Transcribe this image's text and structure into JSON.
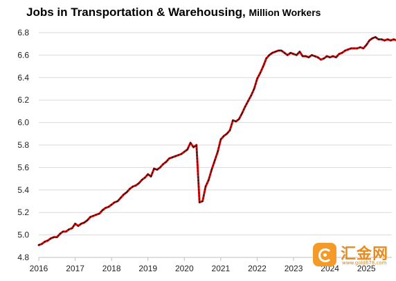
{
  "chart_data": {
    "type": "line",
    "title": "Jobs in Transportation & Warehousing,",
    "subtitle": "Million Workers",
    "ylim": [
      4.8,
      6.8
    ],
    "yticks": [
      "4.8",
      "5.0",
      "5.2",
      "5.4",
      "5.6",
      "5.8",
      "6.0",
      "6.2",
      "6.4",
      "6.6",
      "6.8"
    ],
    "xlim": [
      2016,
      2025.7
    ],
    "xticks": [
      "2016",
      "2017",
      "2018",
      "2019",
      "2020",
      "2021",
      "2022",
      "2023",
      "2024",
      "2025"
    ],
    "grid": "horizontal",
    "line_color": "#ff0000",
    "marker_color": "#1a1a1a",
    "series": [
      {
        "values": [
          [
            2016.0,
            4.91
          ],
          [
            2016.083,
            4.92
          ],
          [
            2016.167,
            4.94
          ],
          [
            2016.25,
            4.95
          ],
          [
            2016.333,
            4.97
          ],
          [
            2016.417,
            4.98
          ],
          [
            2016.5,
            4.98
          ],
          [
            2016.583,
            5.01
          ],
          [
            2016.667,
            5.03
          ],
          [
            2016.75,
            5.03
          ],
          [
            2016.833,
            5.05
          ],
          [
            2016.917,
            5.06
          ],
          [
            2017.0,
            5.1
          ],
          [
            2017.083,
            5.08
          ],
          [
            2017.167,
            5.1
          ],
          [
            2017.25,
            5.11
          ],
          [
            2017.333,
            5.13
          ],
          [
            2017.417,
            5.16
          ],
          [
            2017.5,
            5.17
          ],
          [
            2017.583,
            5.18
          ],
          [
            2017.667,
            5.19
          ],
          [
            2017.75,
            5.22
          ],
          [
            2017.833,
            5.24
          ],
          [
            2017.917,
            5.25
          ],
          [
            2018.0,
            5.27
          ],
          [
            2018.083,
            5.29
          ],
          [
            2018.167,
            5.3
          ],
          [
            2018.25,
            5.33
          ],
          [
            2018.333,
            5.36
          ],
          [
            2018.417,
            5.38
          ],
          [
            2018.5,
            5.41
          ],
          [
            2018.583,
            5.43
          ],
          [
            2018.667,
            5.44
          ],
          [
            2018.75,
            5.46
          ],
          [
            2018.833,
            5.49
          ],
          [
            2018.917,
            5.51
          ],
          [
            2019.0,
            5.54
          ],
          [
            2019.083,
            5.52
          ],
          [
            2019.167,
            5.59
          ],
          [
            2019.25,
            5.58
          ],
          [
            2019.333,
            5.6
          ],
          [
            2019.417,
            5.63
          ],
          [
            2019.5,
            5.65
          ],
          [
            2019.583,
            5.68
          ],
          [
            2019.667,
            5.69
          ],
          [
            2019.75,
            5.7
          ],
          [
            2019.833,
            5.71
          ],
          [
            2019.917,
            5.72
          ],
          [
            2020.0,
            5.74
          ],
          [
            2020.083,
            5.76
          ],
          [
            2020.167,
            5.82
          ],
          [
            2020.25,
            5.78
          ],
          [
            2020.333,
            5.8
          ],
          [
            2020.417,
            5.29
          ],
          [
            2020.5,
            5.3
          ],
          [
            2020.583,
            5.43
          ],
          [
            2020.667,
            5.49
          ],
          [
            2020.75,
            5.58
          ],
          [
            2020.833,
            5.66
          ],
          [
            2020.917,
            5.74
          ],
          [
            2021.0,
            5.85
          ],
          [
            2021.083,
            5.88
          ],
          [
            2021.167,
            5.9
          ],
          [
            2021.25,
            5.93
          ],
          [
            2021.333,
            6.02
          ],
          [
            2021.417,
            6.01
          ],
          [
            2021.5,
            6.03
          ],
          [
            2021.583,
            6.08
          ],
          [
            2021.667,
            6.14
          ],
          [
            2021.75,
            6.19
          ],
          [
            2021.833,
            6.24
          ],
          [
            2021.917,
            6.3
          ],
          [
            2022.0,
            6.39
          ],
          [
            2022.083,
            6.44
          ],
          [
            2022.167,
            6.5
          ],
          [
            2022.25,
            6.57
          ],
          [
            2022.333,
            6.6
          ],
          [
            2022.417,
            6.62
          ],
          [
            2022.5,
            6.63
          ],
          [
            2022.583,
            6.64
          ],
          [
            2022.667,
            6.64
          ],
          [
            2022.75,
            6.62
          ],
          [
            2022.833,
            6.6
          ],
          [
            2022.917,
            6.62
          ],
          [
            2023.0,
            6.61
          ],
          [
            2023.083,
            6.6
          ],
          [
            2023.167,
            6.63
          ],
          [
            2023.25,
            6.59
          ],
          [
            2023.333,
            6.59
          ],
          [
            2023.417,
            6.58
          ],
          [
            2023.5,
            6.6
          ],
          [
            2023.583,
            6.59
          ],
          [
            2023.667,
            6.58
          ],
          [
            2023.75,
            6.56
          ],
          [
            2023.833,
            6.57
          ],
          [
            2023.917,
            6.59
          ],
          [
            2024.0,
            6.58
          ],
          [
            2024.083,
            6.59
          ],
          [
            2024.167,
            6.58
          ],
          [
            2024.25,
            6.61
          ],
          [
            2024.333,
            6.62
          ],
          [
            2024.417,
            6.64
          ],
          [
            2024.5,
            6.65
          ],
          [
            2024.583,
            6.66
          ],
          [
            2024.667,
            6.66
          ],
          [
            2024.75,
            6.66
          ],
          [
            2024.833,
            6.67
          ],
          [
            2024.917,
            6.66
          ],
          [
            2025.0,
            6.69
          ],
          [
            2025.083,
            6.73
          ],
          [
            2025.167,
            6.75
          ],
          [
            2025.25,
            6.76
          ],
          [
            2025.333,
            6.74
          ],
          [
            2025.417,
            6.74
          ],
          [
            2025.5,
            6.73
          ],
          [
            2025.583,
            6.74
          ],
          [
            2025.667,
            6.73
          ],
          [
            2025.75,
            6.74
          ],
          [
            2025.833,
            6.73
          ],
          [
            2025.917,
            6.71
          ]
        ]
      }
    ]
  },
  "watermark": {
    "brand_text": "汇金网",
    "url_text": "www.gold678.com",
    "icon": "gold678-logo-icon",
    "color": "#f39a28"
  }
}
